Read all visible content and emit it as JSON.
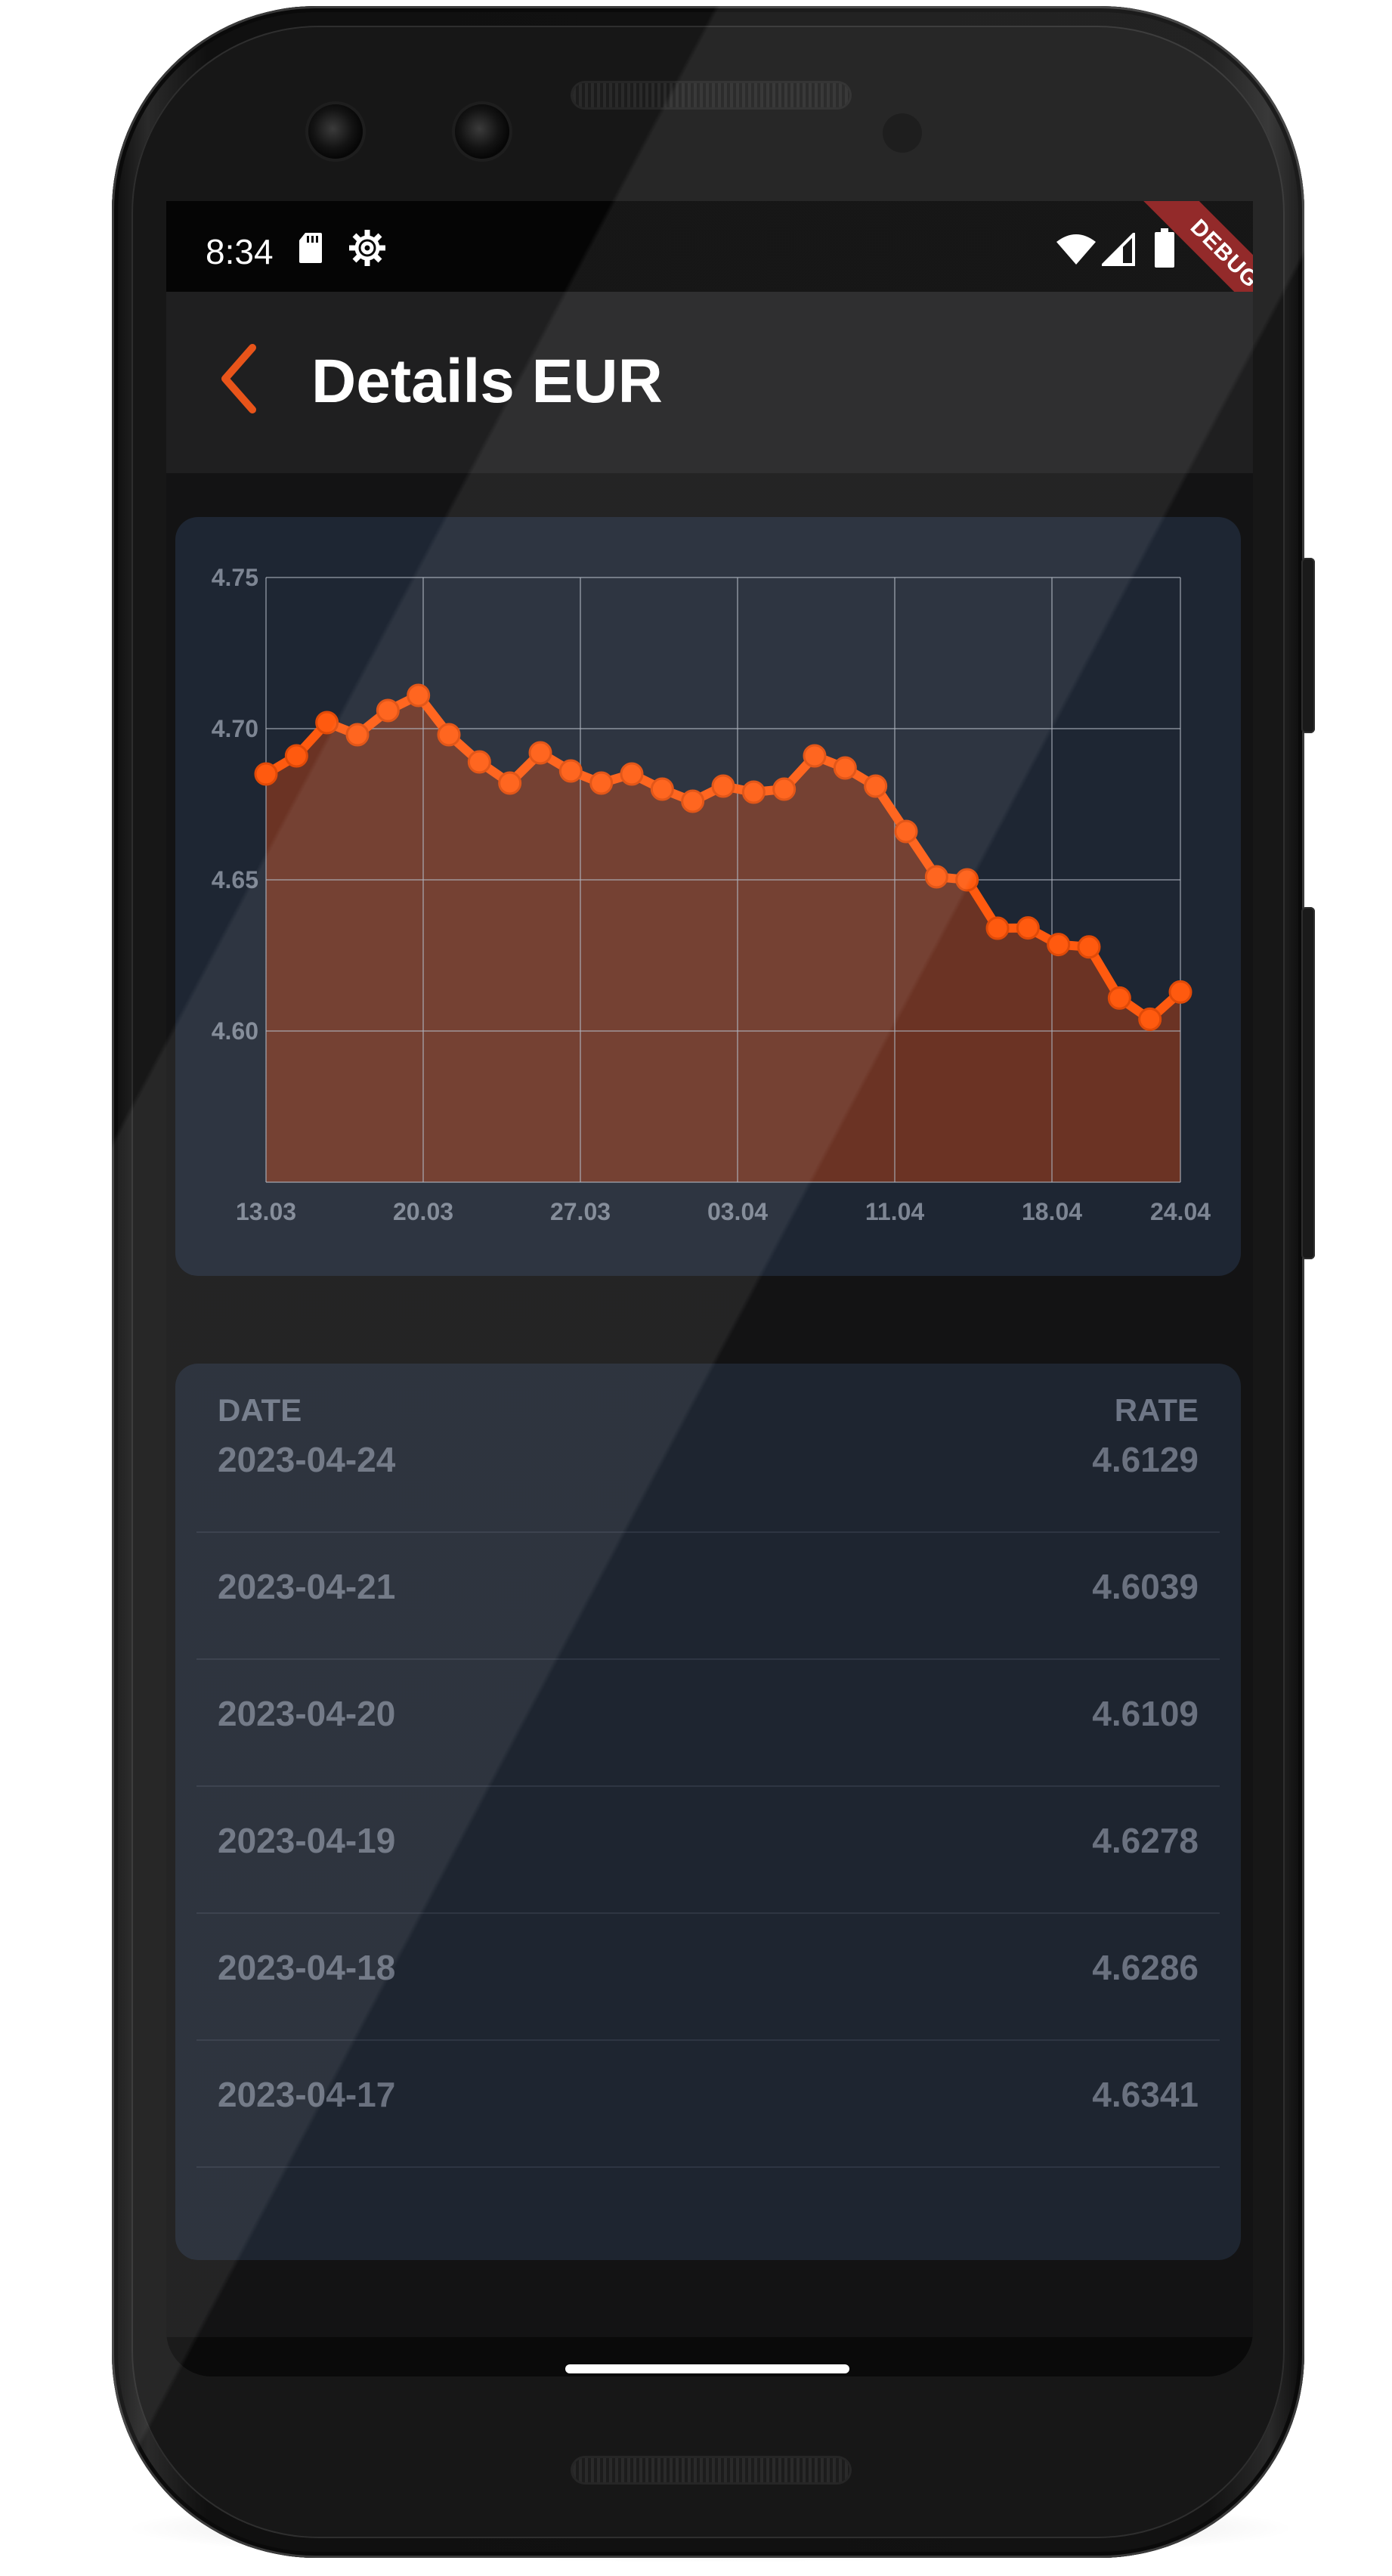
{
  "status_bar": {
    "time": "8:34",
    "icons": [
      "sd-card-icon",
      "gear-icon",
      "wifi-icon",
      "signal-icon",
      "battery-icon"
    ],
    "debug_label": "DEBUG"
  },
  "app_bar": {
    "title": "Details EUR",
    "back_icon": "chevron-left-icon",
    "accent_color": "#e8541a"
  },
  "chart_data": {
    "type": "area",
    "x": [
      "2023-03-13",
      "2023-03-14",
      "2023-03-15",
      "2023-03-16",
      "2023-03-17",
      "2023-03-20",
      "2023-03-21",
      "2023-03-22",
      "2023-03-23",
      "2023-03-24",
      "2023-03-27",
      "2023-03-28",
      "2023-03-29",
      "2023-03-30",
      "2023-03-31",
      "2023-04-03",
      "2023-04-04",
      "2023-04-05",
      "2023-04-06",
      "2023-04-07",
      "2023-04-10",
      "2023-04-11",
      "2023-04-12",
      "2023-04-13",
      "2023-04-14",
      "2023-04-17",
      "2023-04-18",
      "2023-04-19",
      "2023-04-20",
      "2023-04-21",
      "2023-04-24"
    ],
    "x_positions_days": [
      0,
      1,
      2,
      3,
      4,
      5,
      6,
      7,
      8,
      9,
      10,
      11,
      12,
      13,
      14,
      15,
      16,
      17,
      18,
      19,
      20,
      21,
      22,
      23,
      24,
      25,
      26,
      27,
      28,
      29,
      30
    ],
    "values": [
      4.685,
      4.691,
      4.702,
      4.698,
      4.706,
      4.711,
      4.698,
      4.689,
      4.682,
      4.692,
      4.686,
      4.682,
      4.685,
      4.68,
      4.676,
      4.681,
      4.679,
      4.68,
      4.691,
      4.687,
      4.681,
      4.666,
      4.651,
      4.65,
      4.634,
      4.6341,
      4.6286,
      4.6278,
      4.6109,
      4.6039,
      4.6129
    ],
    "x_tick_labels": [
      "13.03",
      "20.03",
      "27.03",
      "03.04",
      "11.04",
      "18.04",
      "24.04"
    ],
    "y_tick_labels": [
      "4.75",
      "4.70",
      "4.65",
      "4.60"
    ],
    "ylim": [
      4.55,
      4.75
    ],
    "y_ticks": [
      4.6,
      4.65,
      4.7,
      4.75
    ],
    "grid": true,
    "title": "",
    "xlabel": "",
    "ylabel": "",
    "line_color": "#ff5a0f",
    "fill_color": "#6b3324"
  },
  "table": {
    "headers": {
      "date": "DATE",
      "rate": "RATE"
    },
    "rows": [
      {
        "date": "2023-04-24",
        "rate": "4.6129"
      },
      {
        "date": "2023-04-21",
        "rate": "4.6039"
      },
      {
        "date": "2023-04-20",
        "rate": "4.6109"
      },
      {
        "date": "2023-04-19",
        "rate": "4.6278"
      },
      {
        "date": "2023-04-18",
        "rate": "4.6286"
      },
      {
        "date": "2023-04-17",
        "rate": "4.6341"
      }
    ]
  }
}
